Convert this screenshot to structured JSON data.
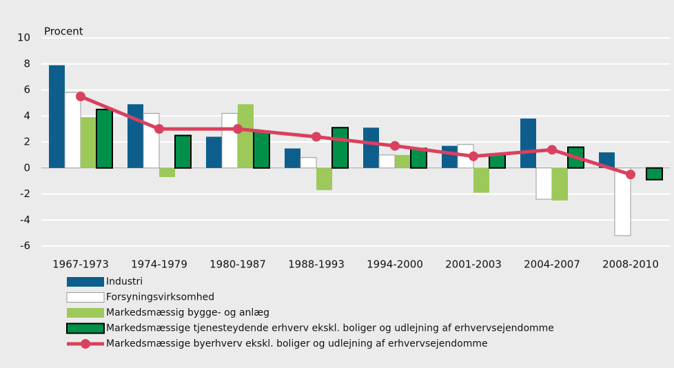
{
  "chart_data": {
    "type": "bar",
    "y_label": "Procent",
    "categories": [
      "1967-1973",
      "1974-1979",
      "1980-1987",
      "1988-1993",
      "1994-2000",
      "2001-2003",
      "2004-2007",
      "2008-2010"
    ],
    "series": [
      {
        "name": "Industri",
        "color": "#0d5e8c",
        "values": [
          7.9,
          4.9,
          2.4,
          1.5,
          3.1,
          1.7,
          3.8,
          1.2
        ]
      },
      {
        "name": "Forsyningsvirksomhed",
        "color": "#ffffff",
        "values": [
          5.8,
          4.2,
          4.2,
          0.8,
          1.0,
          1.8,
          -2.4,
          -5.2
        ]
      },
      {
        "name": "Markedsmæssig bygge- og anlæg",
        "color": "#9cc95a",
        "values": [
          3.9,
          -0.7,
          4.9,
          -1.7,
          1.0,
          -1.9,
          -2.5,
          0
        ]
      },
      {
        "name": "Markedsmæssige tjenesteydende erhverv ekskl. boliger og udlejning af erhvervsejendomme",
        "color": "#00904a",
        "values": [
          4.5,
          2.5,
          2.8,
          3.1,
          1.5,
          1.0,
          1.6,
          -0.9
        ]
      },
      {
        "name": "Markedsmæssige byerhverv ekskl. boliger og udlejning af erhvervsejendomme",
        "color": "#d9415e",
        "type": "line",
        "values": [
          5.5,
          3.0,
          3.0,
          2.4,
          1.7,
          0.9,
          1.4,
          -0.5
        ]
      }
    ],
    "ylim": [
      -6,
      10
    ],
    "yticks": [
      -6,
      -4,
      -2,
      0,
      2,
      4,
      6,
      8,
      10
    ],
    "grid": true
  }
}
